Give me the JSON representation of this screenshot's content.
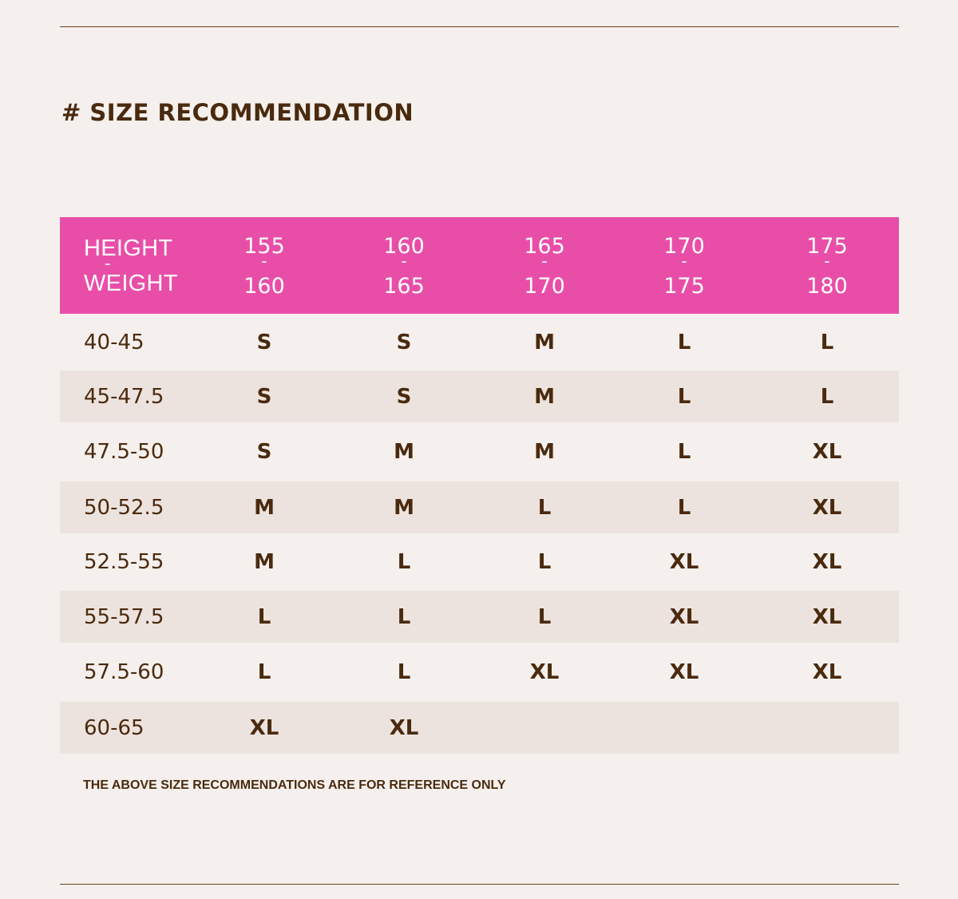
{
  "title": "# SIZE RECOMMENDATION",
  "table": {
    "header_label": {
      "line1": "HEIGHT",
      "separator": "-",
      "line2": "WEIGHT"
    },
    "columns": [
      {
        "from": "155",
        "separator": "-",
        "to": "160"
      },
      {
        "from": "160",
        "separator": "-",
        "to": "165"
      },
      {
        "from": "165",
        "separator": "-",
        "to": "170"
      },
      {
        "from": "170",
        "separator": "-",
        "to": "175"
      },
      {
        "from": "175",
        "separator": "-",
        "to": "180"
      }
    ],
    "rows": [
      {
        "weight": "40-45",
        "sizes": [
          "S",
          "S",
          "M",
          "L",
          "L"
        ]
      },
      {
        "weight": "45-47.5",
        "sizes": [
          "S",
          "S",
          "M",
          "L",
          "L"
        ]
      },
      {
        "weight": "47.5-50",
        "sizes": [
          "S",
          "M",
          "M",
          "L",
          "XL"
        ]
      },
      {
        "weight": "50-52.5",
        "sizes": [
          "M",
          "M",
          "L",
          "L",
          "XL"
        ]
      },
      {
        "weight": "52.5-55",
        "sizes": [
          "M",
          "L",
          "L",
          "XL",
          "XL"
        ]
      },
      {
        "weight": "55-57.5",
        "sizes": [
          "L",
          "L",
          "L",
          "XL",
          "XL"
        ]
      },
      {
        "weight": "57.5-60",
        "sizes": [
          "L",
          "L",
          "XL",
          "XL",
          "XL"
        ]
      },
      {
        "weight": "60-65",
        "sizes": [
          "XL",
          "XL",
          "",
          "",
          ""
        ]
      }
    ]
  },
  "note": "THE ABOVE SIZE RECOMMENDATIONS ARE FOR REFERENCE ONLY",
  "colors": {
    "background": "#f5f0ed",
    "header": "#e84ea8",
    "alt_row": "#ede3de",
    "text": "#4a2a0e",
    "rule": "#6b3f1f"
  }
}
